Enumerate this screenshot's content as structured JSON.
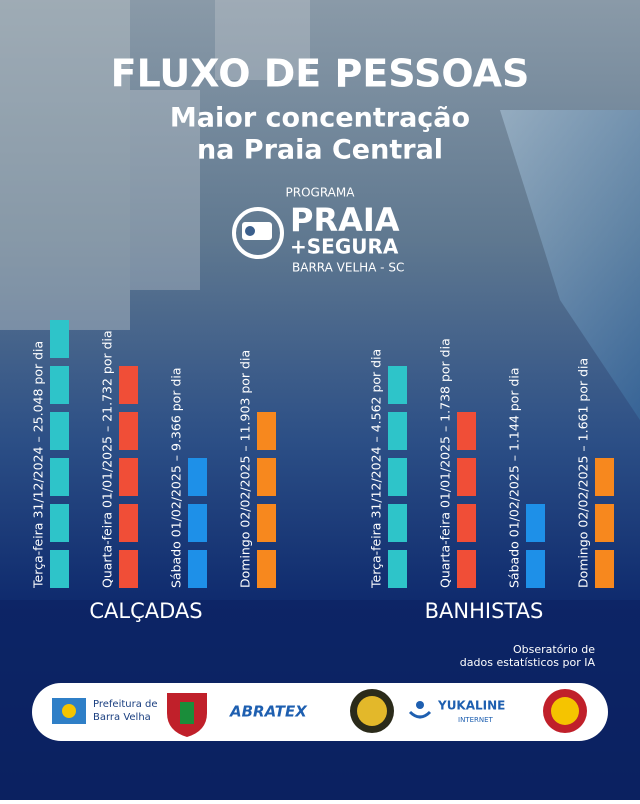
{
  "header": {
    "title": "FLUXO DE PESSOAS",
    "subtitle_lines": [
      "Maior concentração",
      "na Praia Central"
    ]
  },
  "program": {
    "kicker": "PROGRAMA",
    "name": "PRAIA",
    "name2": "+SEGURA",
    "place": "BARRA VELHA - SC"
  },
  "groups": [
    {
      "label": "CALÇADAS",
      "items": [
        {
          "text": "Terça-feira 31/12/2024 – 25.048 por dia",
          "blocks": 6,
          "color": "#2ec4c9"
        },
        {
          "text": "Quarta-feira 01/01/2025 – 21.732 por dia",
          "blocks": 5,
          "color": "#f04e37"
        },
        {
          "text": "Sábado 01/02/2025 – 9.366 por dia",
          "blocks": 3,
          "color": "#1e90e8"
        },
        {
          "text": "Domingo 02/02/2025 – 11.903 por dia",
          "blocks": 4,
          "color": "#f7881e"
        }
      ]
    },
    {
      "label": "BANHISTAS",
      "items": [
        {
          "text": "Terça-feira 31/12/2024 – 4.562 por dia",
          "blocks": 5,
          "color": "#2ec4c9"
        },
        {
          "text": "Quarta-feira 01/01/2025 – 1.738 por dia",
          "blocks": 4,
          "color": "#f04e37"
        },
        {
          "text": "Sábado 01/02/2025 – 1.144 por dia",
          "blocks": 2,
          "color": "#1e90e8"
        },
        {
          "text": "Domingo 02/02/2025 – 1.661 por dia",
          "blocks": 3,
          "color": "#f7881e"
        }
      ]
    }
  ],
  "source": [
    "Obseratório de",
    "dados estatísticos por IA"
  ],
  "sponsors": {
    "prefeitura": [
      "Prefeitura de",
      "Barra Velha"
    ],
    "abratex": "ABRATEX",
    "yukaline": "YUKALINE",
    "internet": "INTERNET"
  }
}
